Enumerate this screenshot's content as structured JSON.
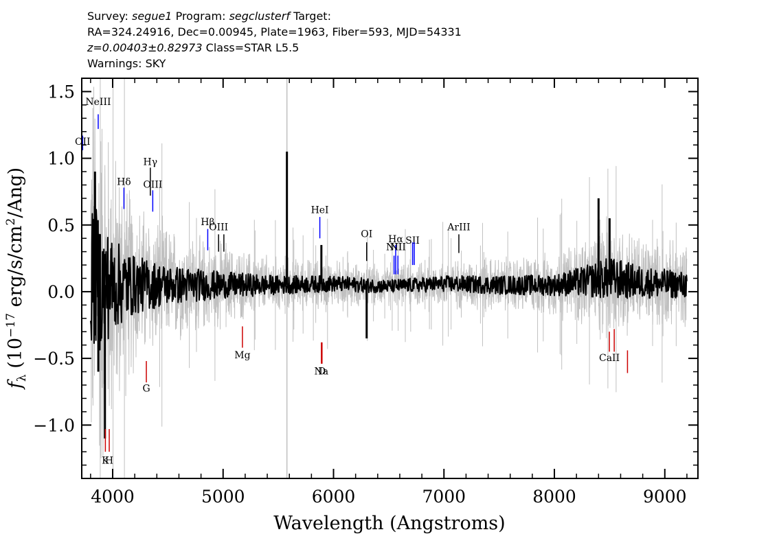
{
  "header": {
    "survey_label": "Survey:",
    "survey": "segue1",
    "program_label": "Program:",
    "program": "segclusterf",
    "target_label": "Target:",
    "coords": "RA=324.24916, Dec=0.00945, Plate=1963, Fiber=593, MJD=54331",
    "redshift": "z=0.00403±0.82973",
    "classification": "Class=STAR L5.5",
    "warnings": "Warnings: SKY"
  },
  "chart_data": {
    "type": "line",
    "xlabel": "Wavelength (Angstroms)",
    "ylabel": "f_λ (10^-17 erg/s/cm²/Ang)",
    "ylabel_parts": {
      "f": "f",
      "sub": "λ",
      "unit_start": " (10",
      "exp1": "−17",
      "unit_mid": " erg/s/cm",
      "exp2": "2",
      "unit_end": "/Ang)"
    },
    "xlim": [
      3720,
      9300
    ],
    "ylim": [
      -1.4,
      1.6
    ],
    "x_ticks": [
      4000,
      5000,
      6000,
      7000,
      8000,
      9000
    ],
    "x_tick_labels": [
      "4000",
      "5000",
      "6000",
      "7000",
      "8000",
      "9000"
    ],
    "y_ticks": [
      -1.0,
      -0.5,
      0.0,
      0.5,
      1.0,
      1.5
    ],
    "y_tick_labels": [
      "−1.0",
      "−0.5",
      "0.0",
      "0.5",
      "1.0",
      "1.5"
    ],
    "series": [
      {
        "role": "error",
        "color": "#c0c0c0",
        "x_range": [
          3800,
          9200
        ]
      },
      {
        "role": "flux",
        "color": "#000000",
        "x_range": [
          3800,
          9200
        ]
      }
    ],
    "flux_envelope": [
      {
        "x": 3810,
        "y_center": 0.15,
        "amplitude": 0.55
      },
      {
        "x": 3900,
        "y_center": 0.05,
        "amplitude": 0.5
      },
      {
        "x": 4000,
        "y_center": 0.05,
        "amplitude": 0.35
      },
      {
        "x": 4200,
        "y_center": 0.05,
        "amplitude": 0.22
      },
      {
        "x": 4500,
        "y_center": 0.05,
        "amplitude": 0.15
      },
      {
        "x": 5000,
        "y_center": 0.05,
        "amplitude": 0.1
      },
      {
        "x": 5500,
        "y_center": 0.05,
        "amplitude": 0.07
      },
      {
        "x": 6000,
        "y_center": 0.06,
        "amplitude": 0.06
      },
      {
        "x": 6500,
        "y_center": 0.04,
        "amplitude": 0.05
      },
      {
        "x": 7000,
        "y_center": 0.06,
        "amplitude": 0.06
      },
      {
        "x": 7500,
        "y_center": 0.05,
        "amplitude": 0.07
      },
      {
        "x": 8000,
        "y_center": 0.05,
        "amplitude": 0.08
      },
      {
        "x": 8300,
        "y_center": 0.08,
        "amplitude": 0.12
      },
      {
        "x": 8500,
        "y_center": 0.1,
        "amplitude": 0.16
      },
      {
        "x": 8800,
        "y_center": 0.07,
        "amplitude": 0.12
      },
      {
        "x": 9200,
        "y_center": 0.05,
        "amplitude": 0.1
      }
    ],
    "flux_spikes": [
      {
        "x": 5578,
        "y": 1.05
      },
      {
        "x": 5890,
        "y": 0.35
      },
      {
        "x": 6300,
        "y": -0.35
      },
      {
        "x": 3840,
        "y": 0.9
      },
      {
        "x": 3870,
        "y": -0.6
      },
      {
        "x": 3930,
        "y": -1.1
      },
      {
        "x": 8400,
        "y": 0.7
      },
      {
        "x": 8500,
        "y": 0.55
      }
    ],
    "emission_lines": [
      {
        "label": "OII",
        "x": 3728,
        "y_top": 1.17,
        "y_bottom": 1.06,
        "label_y": 1.1,
        "color": "#0000ff"
      },
      {
        "label": "NeIII",
        "x": 3869,
        "y_top": 1.33,
        "y_bottom": 1.22,
        "label_y": 1.4,
        "color": "#0000ff"
      },
      {
        "label": "Hδ",
        "x": 4102,
        "y_top": 0.78,
        "y_bottom": 0.62,
        "label_y": 0.8,
        "color": "#0000ff"
      },
      {
        "label": "Hγ",
        "x": 4341,
        "y_top": 0.93,
        "y_bottom": 0.72,
        "label_y": 0.95,
        "color": "#000000"
      },
      {
        "label": "OIII",
        "x": 4363,
        "y_top": 0.76,
        "y_bottom": 0.6,
        "label_y": 0.78,
        "color": "#0000ff"
      },
      {
        "label": "Hβ",
        "x": 4861,
        "y_top": 0.47,
        "y_bottom": 0.31,
        "label_y": 0.5,
        "color": "#0000ff"
      },
      {
        "label": "OIII",
        "x": 4959,
        "y_top": 0.43,
        "y_bottom": 0.3,
        "label_y": 0.46,
        "color": "#000000"
      },
      {
        "label": "OIII-5007",
        "x": 5007,
        "y_top": 0.43,
        "y_bottom": 0.3,
        "label_y": 0.46,
        "color": "#000000"
      },
      {
        "label": "HeI",
        "x": 5876,
        "y_top": 0.56,
        "y_bottom": 0.4,
        "label_y": 0.59,
        "color": "#0000ff"
      },
      {
        "label": "OI",
        "x": 6300,
        "y_top": 0.37,
        "y_bottom": 0.23,
        "label_y": 0.41,
        "color": "#000000"
      },
      {
        "label": "NII",
        "x": 6548,
        "y_top": 0.27,
        "y_bottom": 0.13,
        "label_y": 0.31,
        "color": "#0000ff"
      },
      {
        "label": "Hα",
        "x": 6563,
        "y_top": 0.35,
        "y_bottom": 0.13,
        "label_y": 0.37,
        "color": "#0000ff"
      },
      {
        "label": "NII",
        "x": 6583,
        "y_top": 0.27,
        "y_bottom": 0.13,
        "label_y": 0.31,
        "color": "#0000ff"
      },
      {
        "label": "SII",
        "x": 6716,
        "y_top": 0.37,
        "y_bottom": 0.2,
        "label_y": 0.36,
        "color": "#0000ff"
      },
      {
        "label": "SII-6731",
        "x": 6731,
        "y_top": 0.37,
        "y_bottom": 0.2,
        "label_y": 0.36,
        "color": "#0000ff"
      },
      {
        "label": "ArIII",
        "x": 7135,
        "y_top": 0.43,
        "y_bottom": 0.29,
        "label_y": 0.46,
        "color": "#000000"
      }
    ],
    "absorption_lines": [
      {
        "label": "K",
        "x": 3934,
        "y_top": -1.03,
        "y_bottom": -1.2,
        "label_y": -1.29,
        "color": "#cc0000"
      },
      {
        "label": "H",
        "x": 3969,
        "y_top": -1.03,
        "y_bottom": -1.2,
        "label_y": -1.29,
        "color": "#cc0000"
      },
      {
        "label": "G",
        "x": 4305,
        "y_top": -0.52,
        "y_bottom": -0.68,
        "label_y": -0.75,
        "color": "#cc0000"
      },
      {
        "label": "Mg",
        "x": 5175,
        "y_top": -0.26,
        "y_bottom": -0.42,
        "label_y": -0.5,
        "color": "#cc0000"
      },
      {
        "label": "Na",
        "x": 5890,
        "y_top": -0.38,
        "y_bottom": -0.54,
        "label_y": -0.62,
        "color": "#cc0000"
      },
      {
        "label": "D",
        "x": 5896,
        "y_top": -0.38,
        "y_bottom": -0.54,
        "label_y": -0.62,
        "color": "#cc0000"
      },
      {
        "label": "CaII",
        "x": 8498,
        "y_top": -0.3,
        "y_bottom": -0.45,
        "label_y": -0.52,
        "color": "#cc0000"
      },
      {
        "label": "CaII-8542",
        "x": 8542,
        "y_top": -0.28,
        "y_bottom": -0.45,
        "label_y": -0.52,
        "color": "#cc0000"
      },
      {
        "label": "CaII-8662",
        "x": 8662,
        "y_top": -0.44,
        "y_bottom": -0.61,
        "label_y": -0.52,
        "color": "#cc0000"
      }
    ]
  }
}
